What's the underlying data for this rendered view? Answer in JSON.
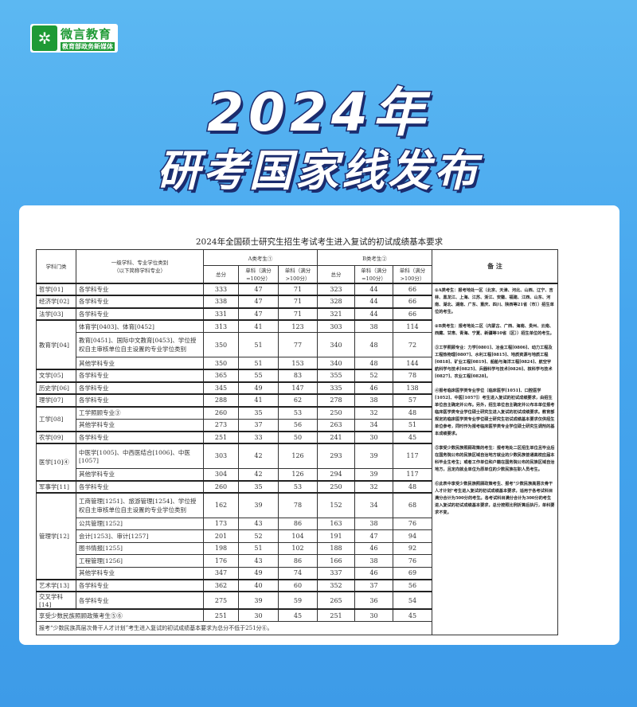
{
  "logo": {
    "name": "微言教育",
    "subtitle": "教育部政务新媒体"
  },
  "headline": {
    "line1": "2024年",
    "line2": "研考国家线发布"
  },
  "table": {
    "title": "2024年全国硕士研究生招生考试考生进入复试的初试成绩基本要求",
    "headers": {
      "category": "学科门类",
      "subject": "一级学科、专业学位类别",
      "subject_sub": "（以下简称学科专业）",
      "group_a": "A类考生①",
      "group_b": "B类考生②",
      "total": "总分",
      "single100": "单科（满分=100分）",
      "single_gt100": "单科（满分>100分）",
      "notes": "备 注"
    },
    "categories": [
      {
        "name": "哲学[01]",
        "rows": [
          {
            "subject": "各学科专业",
            "a": [
              333,
              47,
              71
            ],
            "b": [
              323,
              44,
              66
            ]
          }
        ]
      },
      {
        "name": "经济学[02]",
        "rows": [
          {
            "subject": "各学科专业",
            "a": [
              338,
              47,
              71
            ],
            "b": [
              328,
              44,
              66
            ]
          }
        ]
      },
      {
        "name": "法学[03]",
        "rows": [
          {
            "subject": "各学科专业",
            "a": [
              331,
              47,
              71
            ],
            "b": [
              321,
              44,
              66
            ]
          }
        ]
      },
      {
        "name": "教育学[04]",
        "rows": [
          {
            "subject": "体育学[0403]、体育[0452]",
            "a": [
              313,
              41,
              123
            ],
            "b": [
              303,
              38,
              114
            ]
          },
          {
            "subject": "教育[0451]、国际中文教育[0453]、学位授权自主审核单位自主设置的专业学位类别",
            "a": [
              350,
              51,
              77
            ],
            "b": [
              340,
              48,
              72
            ]
          },
          {
            "subject": "其他学科专业",
            "a": [
              350,
              51,
              153
            ],
            "b": [
              340,
              48,
              144
            ]
          }
        ]
      },
      {
        "name": "文学[05]",
        "rows": [
          {
            "subject": "各学科专业",
            "a": [
              365,
              55,
              83
            ],
            "b": [
              355,
              52,
              78
            ]
          }
        ]
      },
      {
        "name": "历史学[06]",
        "rows": [
          {
            "subject": "各学科专业",
            "a": [
              345,
              49,
              147
            ],
            "b": [
              335,
              46,
              138
            ]
          }
        ]
      },
      {
        "name": "理学[07]",
        "rows": [
          {
            "subject": "各学科专业",
            "a": [
              288,
              41,
              62
            ],
            "b": [
              278,
              38,
              57
            ]
          }
        ]
      },
      {
        "name": "工学[08]",
        "rows": [
          {
            "subject": "工学照顾专业③",
            "a": [
              260,
              35,
              53
            ],
            "b": [
              250,
              32,
              48
            ]
          },
          {
            "subject": "其他学科专业",
            "a": [
              273,
              37,
              56
            ],
            "b": [
              263,
              34,
              51
            ]
          }
        ]
      },
      {
        "name": "农学[09]",
        "rows": [
          {
            "subject": "各学科专业",
            "a": [
              251,
              33,
              50
            ],
            "b": [
              241,
              30,
              45
            ]
          }
        ]
      },
      {
        "name": "医学[10]④",
        "rows": [
          {
            "subject": "中医学[1005]、中西医结合[1006]、中医[1057]",
            "a": [
              303,
              42,
              126
            ],
            "b": [
              293,
              39,
              117
            ]
          },
          {
            "subject": "其他学科专业",
            "a": [
              304,
              42,
              126
            ],
            "b": [
              294,
              39,
              117
            ]
          }
        ]
      },
      {
        "name": "军事学[11]",
        "rows": [
          {
            "subject": "各学科专业",
            "a": [
              260,
              35,
              53
            ],
            "b": [
              250,
              32,
              48
            ]
          }
        ]
      },
      {
        "name": "管理学[12]",
        "rows": [
          {
            "subject": "工商管理[1251]、旅游管理[1254]、学位授权自主审核单位自主设置的专业学位类别",
            "a": [
              162,
              39,
              78
            ],
            "b": [
              152,
              34,
              68
            ]
          },
          {
            "subject": "公共管理[1252]",
            "a": [
              173,
              43,
              86
            ],
            "b": [
              163,
              38,
              76
            ]
          },
          {
            "subject": "会计[1253]、审计[1257]",
            "a": [
              201,
              52,
              104
            ],
            "b": [
              191,
              47,
              94
            ]
          },
          {
            "subject": "图书情报[1255]",
            "a": [
              198,
              51,
              102
            ],
            "b": [
              188,
              46,
              92
            ]
          },
          {
            "subject": "工程管理[1256]",
            "a": [
              176,
              43,
              86
            ],
            "b": [
              166,
              38,
              76
            ]
          },
          {
            "subject": "其他学科专业",
            "a": [
              347,
              49,
              74
            ],
            "b": [
              337,
              46,
              69
            ]
          }
        ]
      },
      {
        "name": "艺术学[13]",
        "rows": [
          {
            "subject": "各学科专业",
            "a": [
              362,
              40,
              60
            ],
            "b": [
              352,
              37,
              56
            ]
          }
        ]
      },
      {
        "name": "交叉学科[14]",
        "rows": [
          {
            "subject": "各学科专业",
            "a": [
              275,
              39,
              59
            ],
            "b": [
              265,
              36,
              54
            ]
          }
        ]
      }
    ],
    "minority": {
      "label": "享受少数民族照顾政策考生⑤⑥",
      "a": [
        251,
        30,
        45
      ],
      "b": [
        251,
        30,
        45
      ]
    },
    "footnote": "报考“少数民族高层次骨干人才计划”考生进入复试的初试成绩基本要求为总分不低于251分⑥。",
    "notes": [
      "①A类考生：报考地处一区（北京、天津、河北、山西、辽宁、吉林、黑龙江、上海、江苏、浙江、安徽、福建、江西、山东、河南、湖北、湖南、广东、重庆、四川、陕西等21省（市））招生单位的考生。",
      "②B类考生：报考地处二区（内蒙古、广西、海南、贵州、云南、西藏、甘肃、青海、宁夏、新疆等10省（区））招生单位的考生。",
      "③工学照顾专业：力学[0801]、冶金工程[0806]、动力工程及工程热物理[0807]、水利工程[0815]、地质资源与地质工程[0818]、矿业工程[0819]、船舶与海洋工程[0824]、航空宇航科学与技术[0825]、兵器科学与技术[0826]、核科学与技术[0827]、农业工程[0828]。",
      "④报考临床医学类专业学位（临床医学[1051]、口腔医学[1052]、中医[1057]）考生进入复试的初试成绩要求，由招生单位自主确定并公布。另外，招生单位自主确定并公布本单位报考临床医学类专业学位硕士研究生进入复试的初试成绩要求。教育部规定的临床医学类专业学位硕士研究生初试成绩基本要求仅供招生单位参考，同时作为报考临床医学类专业学位硕士研究生调剂的基本成绩要求。",
      "⑤享受少数民族照顾政策的考生：报考地处二区招生单位且毕业后在国务院公布的民族区域自治地方就业的少数民族普通高校应届本科毕业生考生；或者工作单位和户籍在国务院公布的民族区域自治地方，且定向就业单位为原单位的少数民族在职人员考生。",
      "⑥此表中享受少数民族照顾政策考生、报考“少数民族高层次骨干人才计划”考生进入复试的初试成绩基本要求，适用于各考试科目满分合计为500分的考生。各考试科目满分合计为300分的考生进入复试的初试成绩基本要求，总分按照比例折算后执行，单科要求不变。"
    ]
  }
}
